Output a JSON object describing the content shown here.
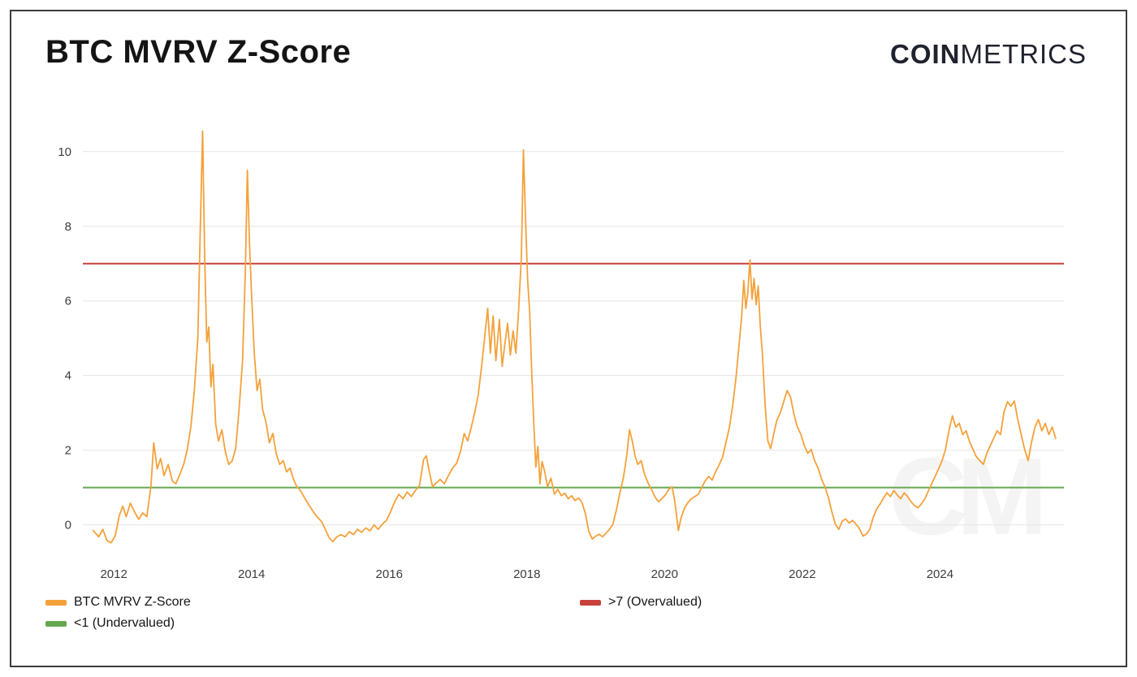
{
  "header": {
    "title": "BTC MVRV Z-Score",
    "logo": {
      "bold": "COIN",
      "light": "METRICS"
    }
  },
  "watermark": "CM",
  "chart_data": {
    "type": "line",
    "title": "BTC MVRV Z-Score",
    "xlabel": "",
    "ylabel": "",
    "x_ticks": [
      2012,
      2014,
      2016,
      2018,
      2020,
      2022,
      2024
    ],
    "y_ticks": [
      0,
      2,
      4,
      6,
      8,
      10
    ],
    "xlim": [
      2011.55,
      2025.8
    ],
    "ylim": [
      -0.9,
      10.8
    ],
    "grid": "horizontal",
    "legend_position": "bottom",
    "colors": {
      "grid": "#e4e4e4",
      "tick_label": "#3d3d3d"
    },
    "thresholds": [
      {
        "label": ">7 (Overvalued)",
        "value": 7,
        "color": "#c8413a"
      },
      {
        "label": "<1 (Undervalued)",
        "value": 1,
        "color": "#63a84f"
      }
    ],
    "legend": [
      {
        "label": "BTC MVRV Z-Score",
        "color": "#f4a13a"
      },
      {
        "label": "<1 (Undervalued)",
        "color": "#63a84f"
      },
      {
        "label": ">7 (Overvalued)",
        "color": "#c8413a"
      }
    ],
    "series": [
      {
        "name": "BTC MVRV Z-Score",
        "color": "#f4a13a",
        "points": [
          [
            2011.7,
            -0.15
          ],
          [
            2011.78,
            -0.32
          ],
          [
            2011.84,
            -0.12
          ],
          [
            2011.9,
            -0.42
          ],
          [
            2011.96,
            -0.48
          ],
          [
            2012.02,
            -0.3
          ],
          [
            2012.08,
            0.25
          ],
          [
            2012.13,
            0.5
          ],
          [
            2012.18,
            0.22
          ],
          [
            2012.24,
            0.58
          ],
          [
            2012.3,
            0.35
          ],
          [
            2012.36,
            0.15
          ],
          [
            2012.42,
            0.32
          ],
          [
            2012.48,
            0.22
          ],
          [
            2012.54,
            1.05
          ],
          [
            2012.58,
            2.2
          ],
          [
            2012.63,
            1.5
          ],
          [
            2012.68,
            1.78
          ],
          [
            2012.73,
            1.32
          ],
          [
            2012.79,
            1.62
          ],
          [
            2012.85,
            1.18
          ],
          [
            2012.9,
            1.1
          ],
          [
            2012.96,
            1.35
          ],
          [
            2013.02,
            1.65
          ],
          [
            2013.07,
            2.05
          ],
          [
            2013.12,
            2.65
          ],
          [
            2013.17,
            3.6
          ],
          [
            2013.22,
            5.0
          ],
          [
            2013.26,
            8.3
          ],
          [
            2013.29,
            10.55
          ],
          [
            2013.32,
            7.2
          ],
          [
            2013.35,
            4.9
          ],
          [
            2013.38,
            5.3
          ],
          [
            2013.41,
            3.7
          ],
          [
            2013.44,
            4.3
          ],
          [
            2013.48,
            2.7
          ],
          [
            2013.52,
            2.25
          ],
          [
            2013.57,
            2.55
          ],
          [
            2013.62,
            1.95
          ],
          [
            2013.67,
            1.62
          ],
          [
            2013.72,
            1.72
          ],
          [
            2013.77,
            2.05
          ],
          [
            2013.82,
            3.1
          ],
          [
            2013.87,
            4.4
          ],
          [
            2013.91,
            6.8
          ],
          [
            2013.94,
            9.5
          ],
          [
            2013.97,
            7.6
          ],
          [
            2014.0,
            6.2
          ],
          [
            2014.04,
            4.6
          ],
          [
            2014.08,
            3.6
          ],
          [
            2014.12,
            3.9
          ],
          [
            2014.16,
            3.1
          ],
          [
            2014.21,
            2.75
          ],
          [
            2014.26,
            2.2
          ],
          [
            2014.31,
            2.45
          ],
          [
            2014.36,
            1.9
          ],
          [
            2014.41,
            1.62
          ],
          [
            2014.46,
            1.72
          ],
          [
            2014.51,
            1.42
          ],
          [
            2014.56,
            1.52
          ],
          [
            2014.61,
            1.22
          ],
          [
            2014.66,
            1.02
          ],
          [
            2014.71,
            0.92
          ],
          [
            2014.76,
            0.76
          ],
          [
            2014.81,
            0.6
          ],
          [
            2014.86,
            0.46
          ],
          [
            2014.91,
            0.32
          ],
          [
            2014.96,
            0.2
          ],
          [
            2015.02,
            0.08
          ],
          [
            2015.08,
            -0.15
          ],
          [
            2015.13,
            -0.35
          ],
          [
            2015.18,
            -0.45
          ],
          [
            2015.24,
            -0.32
          ],
          [
            2015.3,
            -0.26
          ],
          [
            2015.36,
            -0.32
          ],
          [
            2015.42,
            -0.18
          ],
          [
            2015.48,
            -0.26
          ],
          [
            2015.54,
            -0.12
          ],
          [
            2015.6,
            -0.2
          ],
          [
            2015.66,
            -0.08
          ],
          [
            2015.72,
            -0.16
          ],
          [
            2015.78,
            0.0
          ],
          [
            2015.84,
            -0.12
          ],
          [
            2015.9,
            0.02
          ],
          [
            2015.96,
            0.12
          ],
          [
            2016.02,
            0.35
          ],
          [
            2016.08,
            0.62
          ],
          [
            2016.14,
            0.82
          ],
          [
            2016.2,
            0.7
          ],
          [
            2016.26,
            0.88
          ],
          [
            2016.32,
            0.76
          ],
          [
            2016.38,
            0.92
          ],
          [
            2016.44,
            1.05
          ],
          [
            2016.5,
            1.75
          ],
          [
            2016.54,
            1.85
          ],
          [
            2016.58,
            1.45
          ],
          [
            2016.63,
            1.02
          ],
          [
            2016.68,
            1.12
          ],
          [
            2016.74,
            1.22
          ],
          [
            2016.8,
            1.1
          ],
          [
            2016.86,
            1.32
          ],
          [
            2016.92,
            1.52
          ],
          [
            2016.98,
            1.65
          ],
          [
            2017.04,
            2.0
          ],
          [
            2017.09,
            2.45
          ],
          [
            2017.14,
            2.25
          ],
          [
            2017.19,
            2.6
          ],
          [
            2017.24,
            3.0
          ],
          [
            2017.29,
            3.45
          ],
          [
            2017.34,
            4.2
          ],
          [
            2017.39,
            5.1
          ],
          [
            2017.43,
            5.8
          ],
          [
            2017.47,
            4.6
          ],
          [
            2017.51,
            5.6
          ],
          [
            2017.55,
            4.4
          ],
          [
            2017.6,
            5.5
          ],
          [
            2017.64,
            4.25
          ],
          [
            2017.68,
            4.85
          ],
          [
            2017.72,
            5.4
          ],
          [
            2017.76,
            4.55
          ],
          [
            2017.8,
            5.2
          ],
          [
            2017.84,
            4.6
          ],
          [
            2017.88,
            5.75
          ],
          [
            2017.92,
            7.2
          ],
          [
            2017.95,
            10.05
          ],
          [
            2017.98,
            8.2
          ],
          [
            2018.01,
            6.6
          ],
          [
            2018.04,
            5.7
          ],
          [
            2018.07,
            4.1
          ],
          [
            2018.1,
            2.7
          ],
          [
            2018.13,
            1.55
          ],
          [
            2018.16,
            2.1
          ],
          [
            2018.19,
            1.1
          ],
          [
            2018.22,
            1.7
          ],
          [
            2018.26,
            1.42
          ],
          [
            2018.3,
            1.02
          ],
          [
            2018.35,
            1.25
          ],
          [
            2018.4,
            0.82
          ],
          [
            2018.45,
            0.95
          ],
          [
            2018.5,
            0.78
          ],
          [
            2018.55,
            0.85
          ],
          [
            2018.6,
            0.7
          ],
          [
            2018.65,
            0.78
          ],
          [
            2018.7,
            0.65
          ],
          [
            2018.75,
            0.72
          ],
          [
            2018.8,
            0.6
          ],
          [
            2018.85,
            0.3
          ],
          [
            2018.9,
            -0.18
          ],
          [
            2018.95,
            -0.38
          ],
          [
            2019.0,
            -0.3
          ],
          [
            2019.05,
            -0.25
          ],
          [
            2019.1,
            -0.32
          ],
          [
            2019.15,
            -0.22
          ],
          [
            2019.2,
            -0.12
          ],
          [
            2019.25,
            0.02
          ],
          [
            2019.3,
            0.4
          ],
          [
            2019.35,
            0.85
          ],
          [
            2019.4,
            1.25
          ],
          [
            2019.45,
            1.85
          ],
          [
            2019.49,
            2.55
          ],
          [
            2019.53,
            2.25
          ],
          [
            2019.57,
            1.85
          ],
          [
            2019.61,
            1.62
          ],
          [
            2019.66,
            1.72
          ],
          [
            2019.71,
            1.35
          ],
          [
            2019.76,
            1.12
          ],
          [
            2019.81,
            0.95
          ],
          [
            2019.86,
            0.75
          ],
          [
            2019.91,
            0.62
          ],
          [
            2019.96,
            0.7
          ],
          [
            2020.01,
            0.8
          ],
          [
            2020.06,
            0.95
          ],
          [
            2020.11,
            1.02
          ],
          [
            2020.15,
            0.62
          ],
          [
            2020.2,
            -0.15
          ],
          [
            2020.24,
            0.2
          ],
          [
            2020.29,
            0.45
          ],
          [
            2020.34,
            0.6
          ],
          [
            2020.39,
            0.7
          ],
          [
            2020.44,
            0.76
          ],
          [
            2020.49,
            0.82
          ],
          [
            2020.54,
            1.0
          ],
          [
            2020.59,
            1.18
          ],
          [
            2020.64,
            1.3
          ],
          [
            2020.69,
            1.2
          ],
          [
            2020.74,
            1.42
          ],
          [
            2020.79,
            1.6
          ],
          [
            2020.84,
            1.8
          ],
          [
            2020.89,
            2.2
          ],
          [
            2020.94,
            2.6
          ],
          [
            2020.99,
            3.2
          ],
          [
            2021.04,
            4.0
          ],
          [
            2021.08,
            4.8
          ],
          [
            2021.12,
            5.6
          ],
          [
            2021.15,
            6.55
          ],
          [
            2021.18,
            5.8
          ],
          [
            2021.21,
            6.25
          ],
          [
            2021.24,
            7.1
          ],
          [
            2021.27,
            6.05
          ],
          [
            2021.3,
            6.6
          ],
          [
            2021.33,
            5.9
          ],
          [
            2021.36,
            6.4
          ],
          [
            2021.39,
            5.3
          ],
          [
            2021.42,
            4.6
          ],
          [
            2021.46,
            3.2
          ],
          [
            2021.5,
            2.25
          ],
          [
            2021.54,
            2.05
          ],
          [
            2021.58,
            2.4
          ],
          [
            2021.63,
            2.8
          ],
          [
            2021.68,
            3.0
          ],
          [
            2021.73,
            3.3
          ],
          [
            2021.78,
            3.6
          ],
          [
            2021.83,
            3.42
          ],
          [
            2021.88,
            2.95
          ],
          [
            2021.93,
            2.62
          ],
          [
            2021.98,
            2.42
          ],
          [
            2022.03,
            2.12
          ],
          [
            2022.08,
            1.92
          ],
          [
            2022.13,
            2.02
          ],
          [
            2022.18,
            1.72
          ],
          [
            2022.23,
            1.52
          ],
          [
            2022.28,
            1.22
          ],
          [
            2022.33,
            1.02
          ],
          [
            2022.38,
            0.72
          ],
          [
            2022.43,
            0.35
          ],
          [
            2022.48,
            0.02
          ],
          [
            2022.53,
            -0.12
          ],
          [
            2022.58,
            0.1
          ],
          [
            2022.63,
            0.16
          ],
          [
            2022.68,
            0.05
          ],
          [
            2022.73,
            0.12
          ],
          [
            2022.78,
            0.02
          ],
          [
            2022.83,
            -0.1
          ],
          [
            2022.88,
            -0.3
          ],
          [
            2022.93,
            -0.25
          ],
          [
            2022.98,
            -0.12
          ],
          [
            2023.03,
            0.2
          ],
          [
            2023.08,
            0.42
          ],
          [
            2023.13,
            0.56
          ],
          [
            2023.18,
            0.72
          ],
          [
            2023.23,
            0.86
          ],
          [
            2023.28,
            0.76
          ],
          [
            2023.33,
            0.92
          ],
          [
            2023.38,
            0.8
          ],
          [
            2023.43,
            0.7
          ],
          [
            2023.48,
            0.86
          ],
          [
            2023.53,
            0.76
          ],
          [
            2023.58,
            0.62
          ],
          [
            2023.63,
            0.52
          ],
          [
            2023.68,
            0.46
          ],
          [
            2023.73,
            0.56
          ],
          [
            2023.78,
            0.7
          ],
          [
            2023.83,
            0.9
          ],
          [
            2023.88,
            1.1
          ],
          [
            2023.93,
            1.3
          ],
          [
            2023.98,
            1.5
          ],
          [
            2024.03,
            1.72
          ],
          [
            2024.08,
            2.02
          ],
          [
            2024.13,
            2.52
          ],
          [
            2024.18,
            2.92
          ],
          [
            2024.23,
            2.62
          ],
          [
            2024.28,
            2.72
          ],
          [
            2024.33,
            2.42
          ],
          [
            2024.38,
            2.52
          ],
          [
            2024.43,
            2.22
          ],
          [
            2024.48,
            2.02
          ],
          [
            2024.53,
            1.82
          ],
          [
            2024.58,
            1.72
          ],
          [
            2024.63,
            1.62
          ],
          [
            2024.68,
            1.92
          ],
          [
            2024.73,
            2.12
          ],
          [
            2024.78,
            2.32
          ],
          [
            2024.83,
            2.52
          ],
          [
            2024.88,
            2.42
          ],
          [
            2024.93,
            3.02
          ],
          [
            2024.98,
            3.3
          ],
          [
            2025.03,
            3.18
          ],
          [
            2025.08,
            3.32
          ],
          [
            2025.13,
            2.82
          ],
          [
            2025.18,
            2.42
          ],
          [
            2025.23,
            2.02
          ],
          [
            2025.28,
            1.72
          ],
          [
            2025.33,
            2.22
          ],
          [
            2025.38,
            2.62
          ],
          [
            2025.43,
            2.82
          ],
          [
            2025.48,
            2.52
          ],
          [
            2025.53,
            2.72
          ],
          [
            2025.58,
            2.42
          ],
          [
            2025.63,
            2.62
          ],
          [
            2025.68,
            2.32
          ]
        ]
      }
    ]
  }
}
